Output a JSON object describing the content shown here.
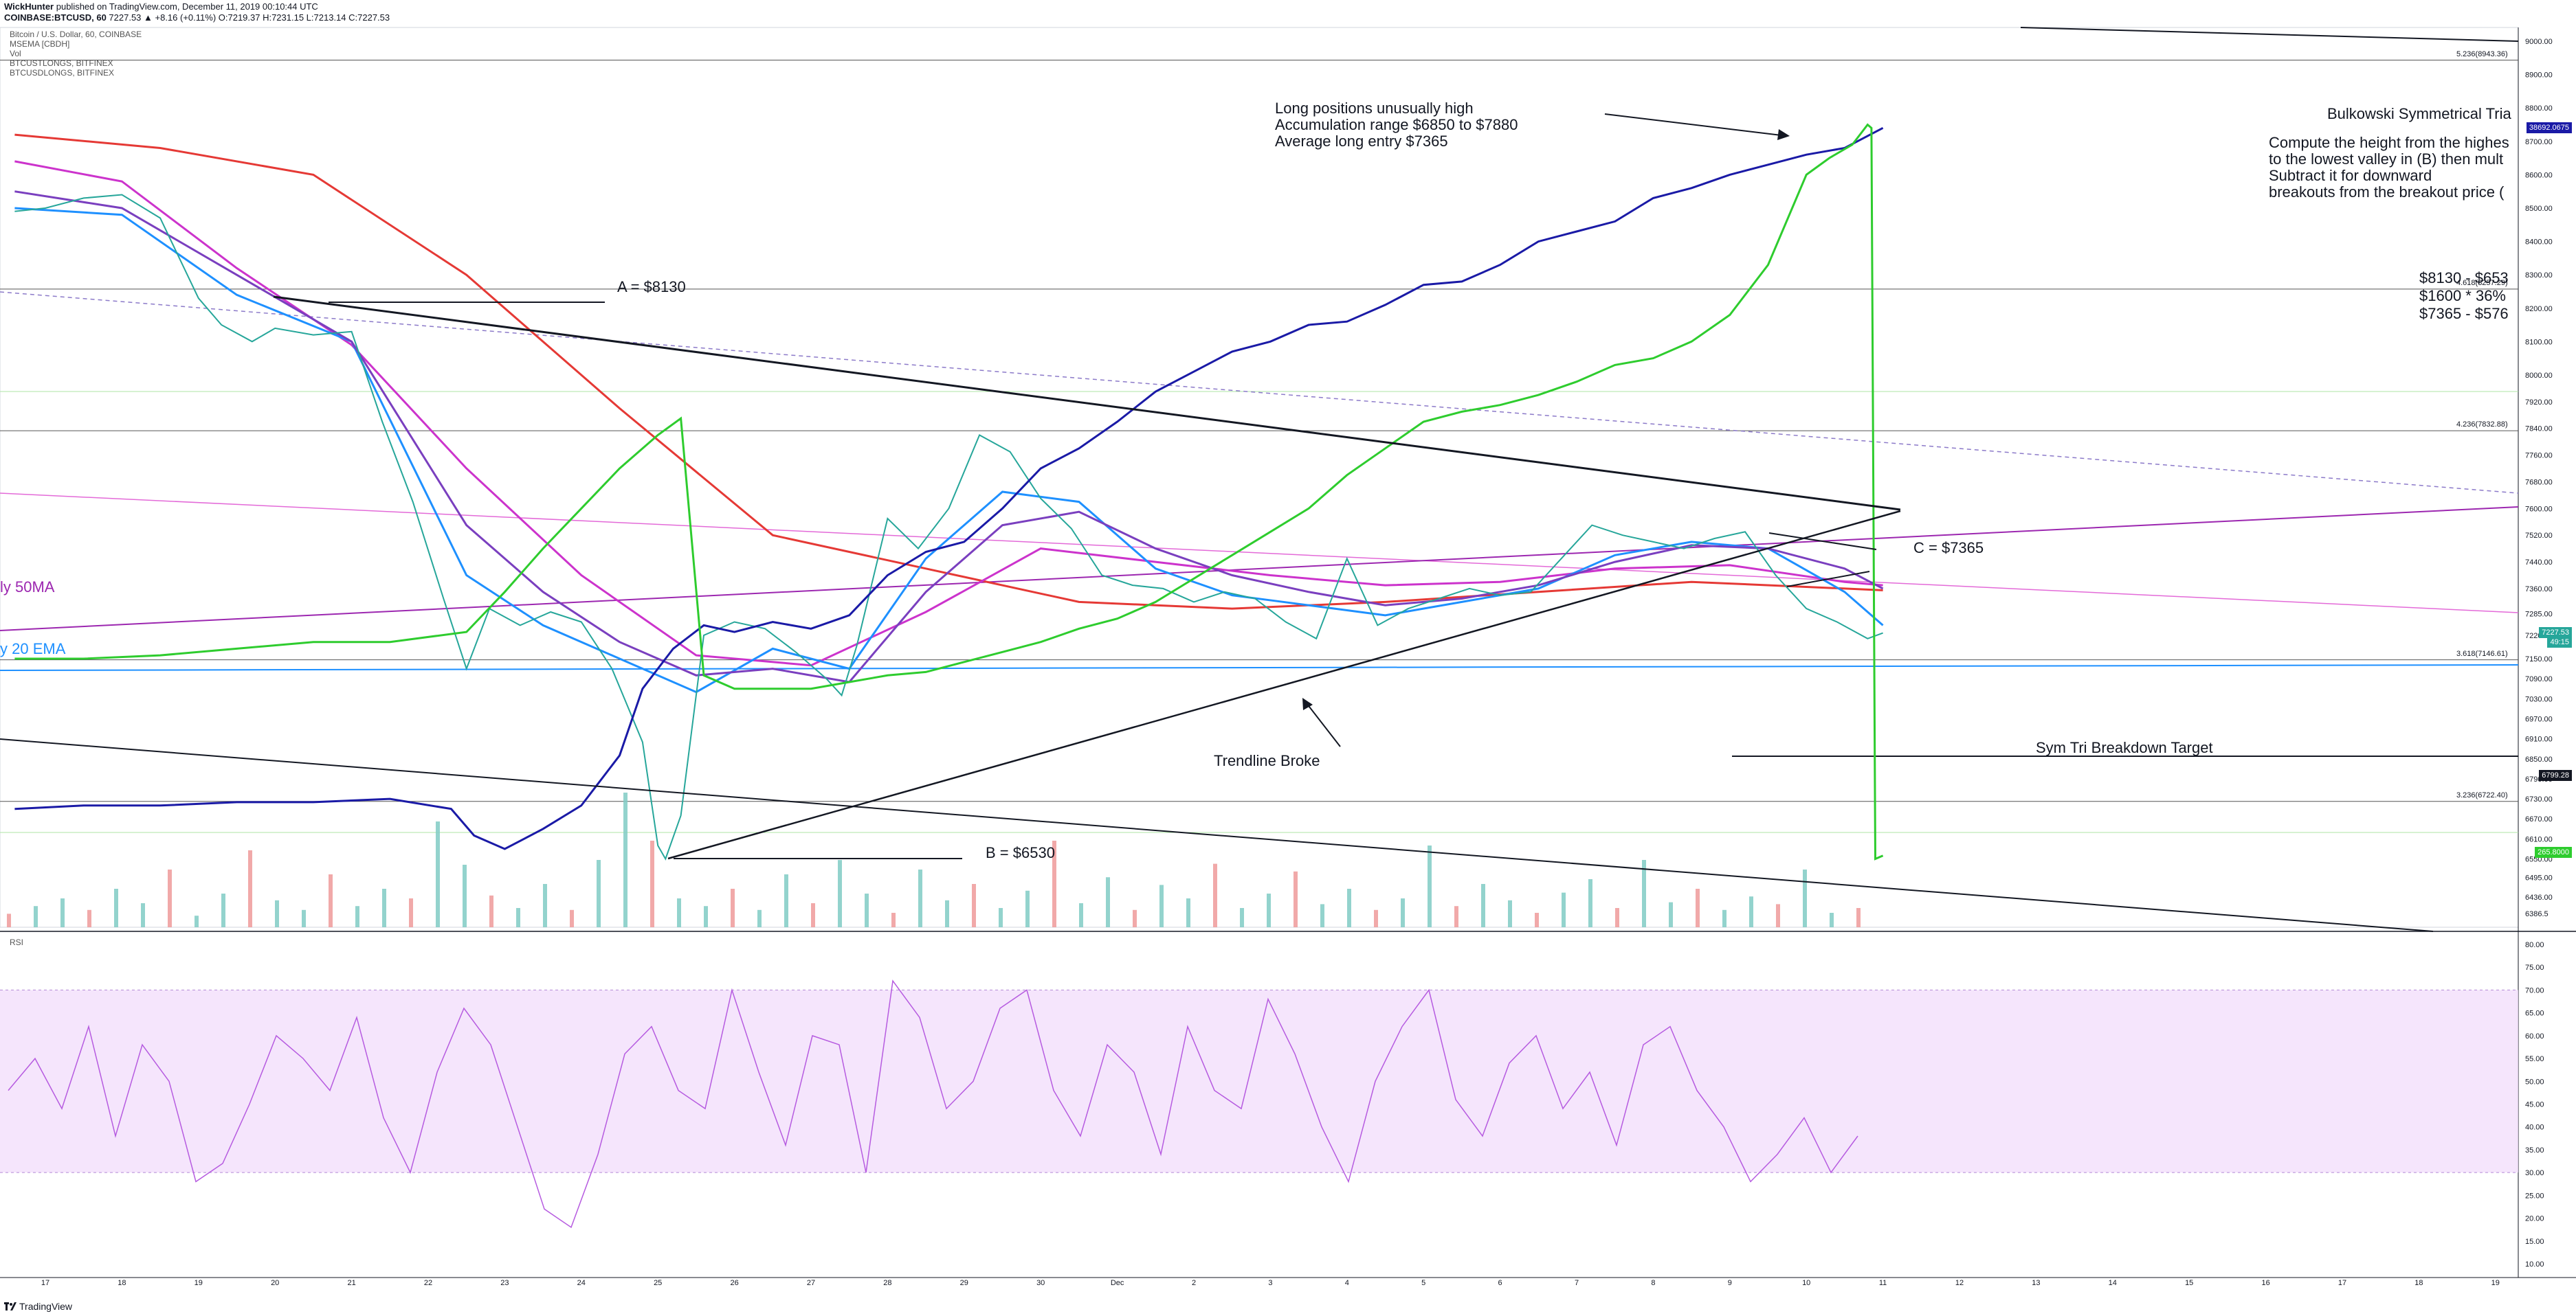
{
  "header": {
    "line1_user": "WickHunter",
    "line1_rest": " published on TradingView.com, December 11, 2019 00:10:44 UTC",
    "line2_symbol": "COINBASE:BTCUSD, 60",
    "line2_ohlc": " 7227.53 ▲ +8.16 (+0.11%) O:7219.37 H:7231.15 L:7213.14 C:7227.53"
  },
  "indicators": [
    "Bitcoin / U.S. Dollar, 60, COINBASE",
    "MSEMA [CBDH]",
    "Vol",
    "BTCUSTLONGS, BITFINEX",
    "BTCUSDLONGS, BITFINEX"
  ],
  "annotations": {
    "long_positions": "Long positions unusually high\nAccumulation range $6850 to $7880\nAverage long entry $7365",
    "a_label": "A = $8130",
    "b_label": "B = $6530",
    "c_label": "C = $7365",
    "trendline_broke": "Trendline Broke",
    "breakdown_target": "Sym Tri Breakdown Target",
    "bulkowski_title": "Bulkowski Symmetrical Tria",
    "bulkowski_text": "Compute the height from the highes\nto the lowest valley in (B) then mult\nSubtract it for downward\nbreakouts from the breakout price (",
    "calc_text": "$8130 - $653\n$1600 * 36%\n$7365 - $576",
    "sma50_label": "ly 50MA",
    "ema20_label": "y 20 EMA",
    "rsi_label": "RSI"
  },
  "fib_labels": [
    {
      "text": "5.236(8943.36)",
      "price": 8943.36
    },
    {
      "text": "4.618(8257.29)",
      "price": 8257.29
    },
    {
      "text": "4.236(7832.88)",
      "price": 7832.88
    },
    {
      "text": "3.618(7146.61)",
      "price": 7146.61
    },
    {
      "text": "3.236(6722.40)",
      "price": 6722.4
    }
  ],
  "price_tags": [
    {
      "text": "38692.0675",
      "price": 8740,
      "color": "#1a1aa6"
    },
    {
      "text": "7227.53",
      "price": 7227.53,
      "color": "#26a69a"
    },
    {
      "text": "49:15",
      "price": 7200,
      "color": "#26a69a"
    },
    {
      "text": "6799.28",
      "price": 6799.28,
      "color": "#131722"
    },
    {
      "text": "265.8000",
      "price": 6570,
      "color": "#2ecc2e"
    }
  ],
  "branding": {
    "logo_text": "TradingView"
  },
  "chart_data": {
    "type": "line",
    "title": "Bitcoin / U.S. Dollar, 60, COINBASE",
    "price_axis": {
      "ticks": [
        9000,
        8900,
        8800,
        8700,
        8600,
        8500,
        8400,
        8300,
        8200,
        8100,
        8000,
        7920,
        7840,
        7760,
        7680,
        7600,
        7520,
        7440,
        7360,
        7285,
        7220,
        7150,
        7090,
        7030,
        6970,
        6910,
        6850,
        6790,
        6730,
        6670,
        6610,
        6550,
        6495,
        6436,
        6386.5
      ]
    },
    "time_axis": {
      "ticks": [
        "17",
        "18",
        "19",
        "20",
        "21",
        "22",
        "23",
        "24",
        "25",
        "26",
        "27",
        "28",
        "29",
        "30",
        "Dec",
        "2",
        "3",
        "4",
        "5",
        "6",
        "7",
        "8",
        "9",
        "10",
        "11",
        "12",
        "13",
        "14",
        "15",
        "16",
        "17",
        "18",
        "19"
      ]
    },
    "rsi_axis": {
      "ticks": [
        80,
        75,
        70,
        65,
        60,
        55,
        50,
        45,
        40,
        35,
        30,
        25,
        20,
        15,
        10
      ],
      "band": [
        30,
        70
      ]
    },
    "series": [
      {
        "name": "BTCUSD",
        "color": "#26a69a",
        "x": [
          16.6,
          17.0,
          17.5,
          18.0,
          18.5,
          19.0,
          19.3,
          19.7,
          20.0,
          20.5,
          21.0,
          21.4,
          21.8,
          22.2,
          22.5,
          22.8,
          23.2,
          23.6,
          24.0,
          24.4,
          24.8,
          25.0,
          25.1,
          25.3,
          25.6,
          26.0,
          26.4,
          26.8,
          27.2,
          27.4,
          27.6,
          28.0,
          28.4,
          28.8,
          29.2,
          29.6,
          30.0,
          30.4,
          30.8,
          31.2,
          31.6,
          32.0,
          32.4,
          32.8,
          33.2,
          33.6,
          34.0,
          34.4,
          34.8,
          35.2,
          35.6,
          36.0,
          36.4,
          36.8,
          37.2,
          37.6,
          38.0,
          38.4,
          38.8,
          39.2,
          39.6,
          40.0,
          40.4,
          40.8,
          41.0
        ],
        "y": [
          8490,
          8500,
          8530,
          8540,
          8470,
          8230,
          8150,
          8100,
          8140,
          8120,
          8130,
          7860,
          7620,
          7330,
          7120,
          7300,
          7250,
          7290,
          7260,
          7120,
          6900,
          6590,
          6550,
          6680,
          7220,
          7260,
          7240,
          7170,
          7090,
          7040,
          7190,
          7570,
          7480,
          7600,
          7820,
          7770,
          7630,
          7540,
          7400,
          7370,
          7360,
          7320,
          7350,
          7330,
          7260,
          7210,
          7450,
          7250,
          7300,
          7330,
          7360,
          7340,
          7350,
          7450,
          7550,
          7520,
          7500,
          7480,
          7510,
          7530,
          7400,
          7300,
          7260,
          7210,
          7227
        ]
      },
      {
        "name": "BTCUSDLONGS",
        "color": "#1a1aa6",
        "x": [
          16.6,
          17.5,
          18.5,
          19.5,
          20.5,
          21.5,
          22.3,
          22.6,
          23.0,
          23.5,
          24.0,
          24.5,
          24.8,
          25.2,
          25.6,
          26.0,
          26.5,
          27.0,
          27.5,
          28.0,
          28.5,
          29.0,
          29.5,
          30.0,
          30.5,
          31.0,
          31.5,
          32.0,
          32.5,
          33.0,
          33.5,
          34.0,
          34.5,
          35.0,
          35.5,
          36.0,
          36.5,
          37.0,
          37.5,
          38.0,
          38.5,
          39.0,
          39.5,
          40.0,
          40.5,
          41.0
        ],
        "y": [
          6700,
          6710,
          6710,
          6720,
          6720,
          6730,
          6700,
          6620,
          6580,
          6640,
          6710,
          6860,
          7060,
          7180,
          7250,
          7230,
          7260,
          7240,
          7280,
          7400,
          7470,
          7500,
          7600,
          7720,
          7780,
          7860,
          7950,
          8010,
          8070,
          8100,
          8150,
          8160,
          8210,
          8270,
          8280,
          8330,
          8400,
          8430,
          8460,
          8530,
          8560,
          8600,
          8630,
          8660,
          8680,
          8740
        ]
      },
      {
        "name": "BTCUSTLONGS",
        "color": "#2ecc2e",
        "x": [
          16.6,
          17.5,
          18.5,
          19.5,
          20.5,
          21.5,
          22.5,
          23.0,
          23.5,
          24.0,
          24.5,
          25.0,
          25.3,
          25.6,
          26.0,
          26.5,
          27.0,
          27.5,
          28.0,
          28.5,
          29.0,
          29.5,
          30.0,
          30.5,
          31.0,
          31.5,
          32.0,
          32.5,
          33.0,
          33.5,
          34.0,
          34.5,
          35.0,
          35.5,
          36.0,
          36.5,
          37.0,
          37.5,
          38.0,
          38.5,
          39.0,
          39.5,
          40.0,
          40.3,
          40.6,
          40.8,
          40.85,
          40.9,
          41.0
        ],
        "y": [
          7150,
          7150,
          7160,
          7180,
          7200,
          7200,
          7230,
          7350,
          7480,
          7600,
          7720,
          7820,
          7870,
          7100,
          7060,
          7060,
          7060,
          7080,
          7100,
          7110,
          7140,
          7170,
          7200,
          7240,
          7270,
          7320,
          7390,
          7460,
          7530,
          7600,
          7700,
          7780,
          7860,
          7890,
          7910,
          7940,
          7980,
          8030,
          8050,
          8100,
          8180,
          8330,
          8600,
          8650,
          8690,
          8750,
          8740,
          6550,
          6560
        ]
      }
    ],
    "ma_lines": [
      {
        "name": "SMA",
        "color": "#e53935",
        "x": [
          16.6,
          18.5,
          20.5,
          22.5,
          24.5,
          26.5,
          28.5,
          30.5,
          32.5,
          34.5,
          36.5,
          38.5,
          40.5,
          41.0
        ],
        "y": [
          8720,
          8680,
          8600,
          8300,
          7900,
          7520,
          7420,
          7320,
          7300,
          7320,
          7350,
          7380,
          7360,
          7355
        ]
      },
      {
        "name": "50MA",
        "color": "#cc33cc",
        "x": [
          16.6,
          18.0,
          19.5,
          21.0,
          22.5,
          24.0,
          25.5,
          27.0,
          28.5,
          30.0,
          31.5,
          33.0,
          34.5,
          36.0,
          37.5,
          39.0,
          40.5,
          41.0
        ],
        "y": [
          8640,
          8580,
          8320,
          8090,
          7720,
          7400,
          7160,
          7130,
          7290,
          7480,
          7440,
          7400,
          7370,
          7380,
          7420,
          7430,
          7380,
          7370
        ]
      },
      {
        "name": "20EMA",
        "color": "#1e90ff",
        "x": [
          16.6,
          18.0,
          19.5,
          21.0,
          22.5,
          23.5,
          24.5,
          25.5,
          26.5,
          27.5,
          28.5,
          29.5,
          30.5,
          31.5,
          32.5,
          33.5,
          34.5,
          35.5,
          36.5,
          37.5,
          38.5,
          39.5,
          40.5,
          41.0
        ],
        "y": [
          8500,
          8480,
          8240,
          8100,
          7400,
          7250,
          7150,
          7050,
          7180,
          7120,
          7450,
          7650,
          7620,
          7420,
          7340,
          7310,
          7280,
          7320,
          7360,
          7460,
          7500,
          7480,
          7350,
          7250
        ]
      },
      {
        "name": "EMAmid",
        "color": "#7a3fbf",
        "x": [
          16.6,
          18.0,
          19.5,
          21.0,
          22.5,
          23.5,
          24.5,
          25.5,
          26.5,
          27.5,
          28.5,
          29.5,
          30.5,
          31.5,
          32.5,
          33.5,
          34.5,
          35.5,
          36.5,
          37.5,
          38.5,
          39.5,
          40.5,
          41.0
        ],
        "y": [
          8550,
          8500,
          8300,
          8100,
          7550,
          7350,
          7200,
          7100,
          7120,
          7080,
          7350,
          7550,
          7590,
          7480,
          7400,
          7350,
          7310,
          7330,
          7370,
          7440,
          7490,
          7480,
          7420,
          7360
        ]
      }
    ],
    "volume": [
      14,
      22,
      30,
      18,
      40,
      25,
      60,
      12,
      35,
      80,
      28,
      18,
      55,
      22,
      40,
      30,
      110,
      65,
      33,
      20,
      45,
      18,
      70,
      140,
      90,
      30,
      22,
      40,
      18,
      55,
      25,
      70,
      35,
      15,
      60,
      28,
      45,
      20,
      38,
      90,
      25,
      52,
      18,
      44,
      30,
      66,
      20,
      35,
      58,
      24,
      40,
      18,
      30,
      85,
      22,
      45,
      28,
      15,
      36,
      50,
      20,
      70,
      26,
      40,
      18,
      32,
      24,
      60,
      15,
      20
    ],
    "rsi": [
      48,
      55,
      44,
      62,
      38,
      58,
      50,
      28,
      32,
      45,
      60,
      55,
      48,
      64,
      42,
      30,
      52,
      66,
      58,
      40,
      22,
      18,
      34,
      56,
      62,
      48,
      44,
      70,
      52,
      36,
      60,
      58,
      30,
      72,
      64,
      44,
      50,
      66,
      70,
      48,
      38,
      58,
      52,
      34,
      62,
      48,
      44,
      68,
      56,
      40,
      28,
      50,
      62,
      70,
      46,
      38,
      54,
      60,
      44,
      52,
      36,
      58,
      62,
      48,
      40,
      28,
      34,
      42,
      30,
      38
    ]
  }
}
